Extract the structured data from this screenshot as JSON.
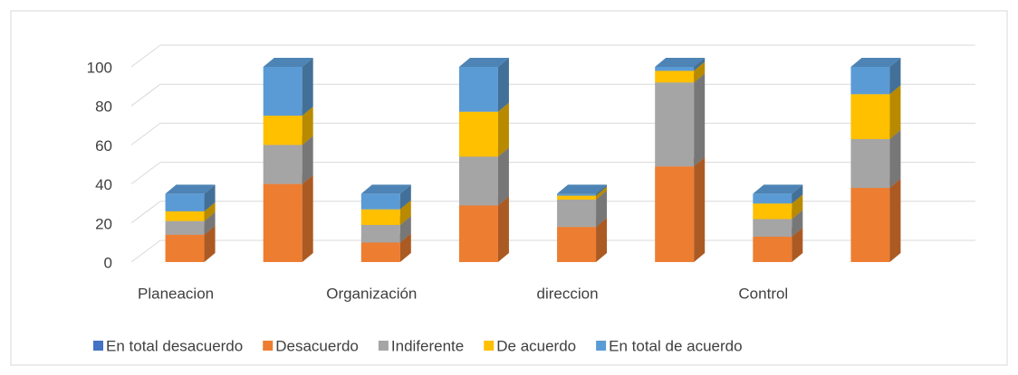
{
  "chart_data": {
    "type": "bar3d_stacked",
    "categories": [
      "Planeacion",
      null,
      "Organización",
      null,
      "direccion",
      null,
      "Control",
      null
    ],
    "series": [
      {
        "name": "En total desacuerdo",
        "color": "#4472c4",
        "values": [
          0,
          0,
          0,
          0,
          0,
          0,
          0,
          0
        ]
      },
      {
        "name": "Desacuerdo",
        "color": "#ed7d31",
        "values": [
          14,
          40,
          10,
          29,
          18,
          49,
          13,
          38
        ]
      },
      {
        "name": "Indiferente",
        "color": "#a5a5a5",
        "values": [
          7,
          20,
          9,
          25,
          14,
          43,
          9,
          25
        ]
      },
      {
        "name": "De acuerdo",
        "color": "#ffc000",
        "values": [
          5,
          15,
          8,
          23,
          2,
          6,
          8,
          23
        ]
      },
      {
        "name": "En total de acuerdo",
        "color": "#5b9bd5",
        "values": [
          9,
          25,
          8,
          23,
          1,
          2,
          5,
          14
        ]
      }
    ],
    "ylim": [
      0,
      100
    ],
    "yticks": [
      0,
      20,
      40,
      60,
      80,
      100
    ],
    "grid": true,
    "legend": "bottom"
  }
}
